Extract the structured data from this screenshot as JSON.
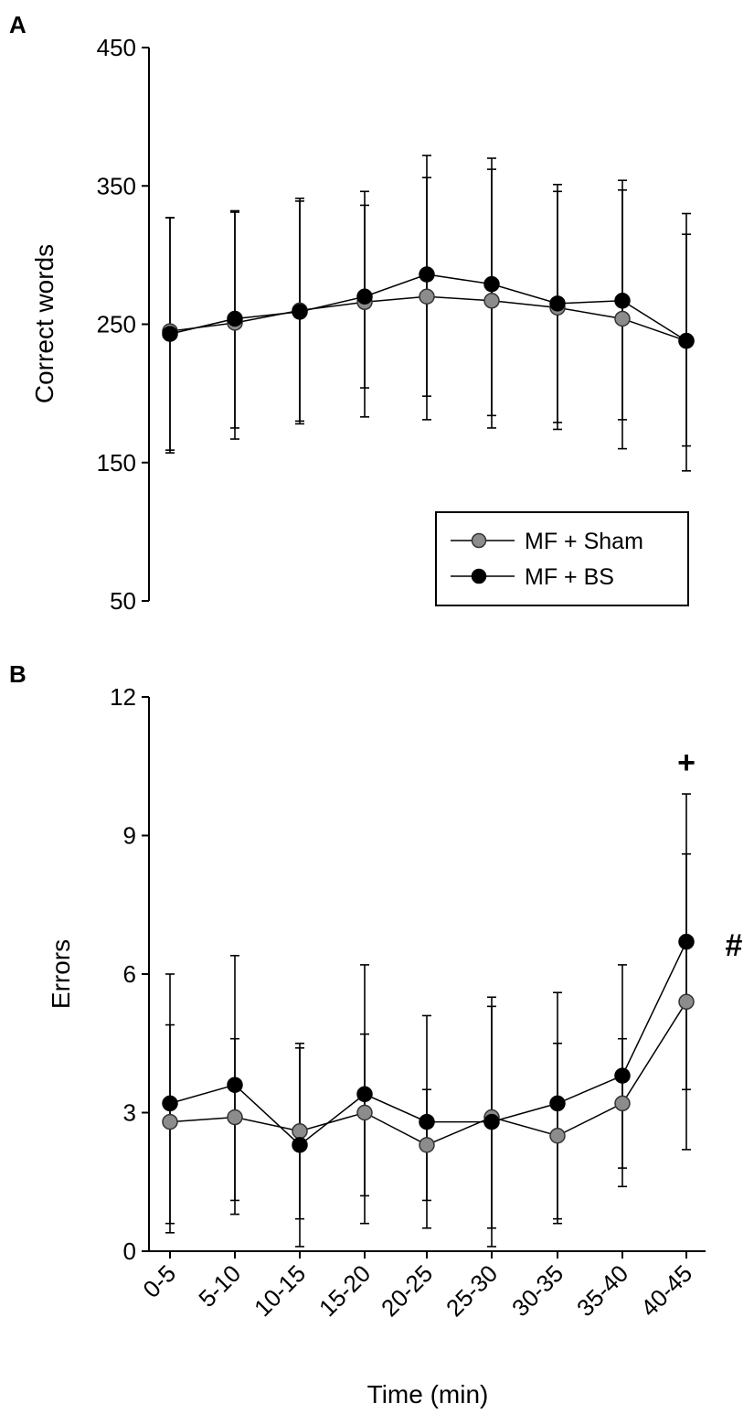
{
  "chart_data": [
    {
      "type": "line",
      "panel_label": "A",
      "ylabel": "Correct words",
      "xlabel": "",
      "ylim": [
        50,
        450
      ],
      "yticks": [
        50,
        150,
        250,
        350,
        450
      ],
      "categories": [
        "0-5",
        "5-10",
        "10-15",
        "15-20",
        "20-25",
        "25-30",
        "30-35",
        "35-40",
        "40-45"
      ],
      "legend": {
        "position": "bottom-right",
        "entries": [
          "MF + Sham",
          "MF + BS"
        ]
      },
      "series": [
        {
          "name": "MF + Sham",
          "color": "#8c8c8c",
          "values": [
            245,
            251,
            260,
            266,
            270,
            267,
            262,
            254,
            238
          ],
          "err_low": [
            157,
            175,
            180,
            204,
            198,
            184,
            179,
            181,
            162
          ],
          "err_high": [
            327,
            331,
            341,
            336,
            356,
            362,
            346,
            347,
            315
          ]
        },
        {
          "name": "MF + BS",
          "color": "#000000",
          "values": [
            243,
            254,
            259,
            270,
            286,
            279,
            265,
            267,
            238
          ],
          "err_low": [
            159,
            167,
            178,
            183,
            181,
            175,
            174,
            160,
            144
          ],
          "err_high": [
            327,
            332,
            339,
            346,
            372,
            370,
            351,
            354,
            330
          ]
        }
      ]
    },
    {
      "type": "line",
      "panel_label": "B",
      "ylabel": "Errors",
      "xlabel": "Time (min)",
      "ylim": [
        0,
        12
      ],
      "yticks": [
        0,
        3,
        6,
        9,
        12
      ],
      "categories": [
        "0-5",
        "5-10",
        "10-15",
        "15-20",
        "20-25",
        "25-30",
        "30-35",
        "35-40",
        "40-45"
      ],
      "series": [
        {
          "name": "MF + Sham",
          "color": "#8c8c8c",
          "values": [
            2.8,
            2.9,
            2.6,
            3.0,
            2.3,
            2.9,
            2.5,
            3.2,
            5.4
          ],
          "err_low": [
            0.6,
            1.1,
            0.7,
            1.2,
            1.1,
            0.5,
            0.7,
            1.8,
            2.2
          ],
          "err_high": [
            4.9,
            4.6,
            4.5,
            4.7,
            3.5,
            5.3,
            4.5,
            4.6,
            8.6
          ]
        },
        {
          "name": "MF + BS",
          "color": "#000000",
          "values": [
            3.2,
            3.6,
            2.3,
            3.4,
            2.8,
            2.8,
            3.2,
            3.8,
            6.7
          ],
          "err_low": [
            0.4,
            0.8,
            0.1,
            0.6,
            0.5,
            0.1,
            0.6,
            1.4,
            3.5
          ],
          "err_high": [
            6.0,
            6.4,
            4.4,
            6.2,
            5.1,
            5.5,
            5.6,
            6.2,
            9.9
          ]
        }
      ],
      "annotations": [
        {
          "text": "+",
          "category": "40-45",
          "near": "above-error-bar"
        },
        {
          "text": "#",
          "category": "40-45",
          "near": "right-of-series"
        }
      ]
    }
  ]
}
